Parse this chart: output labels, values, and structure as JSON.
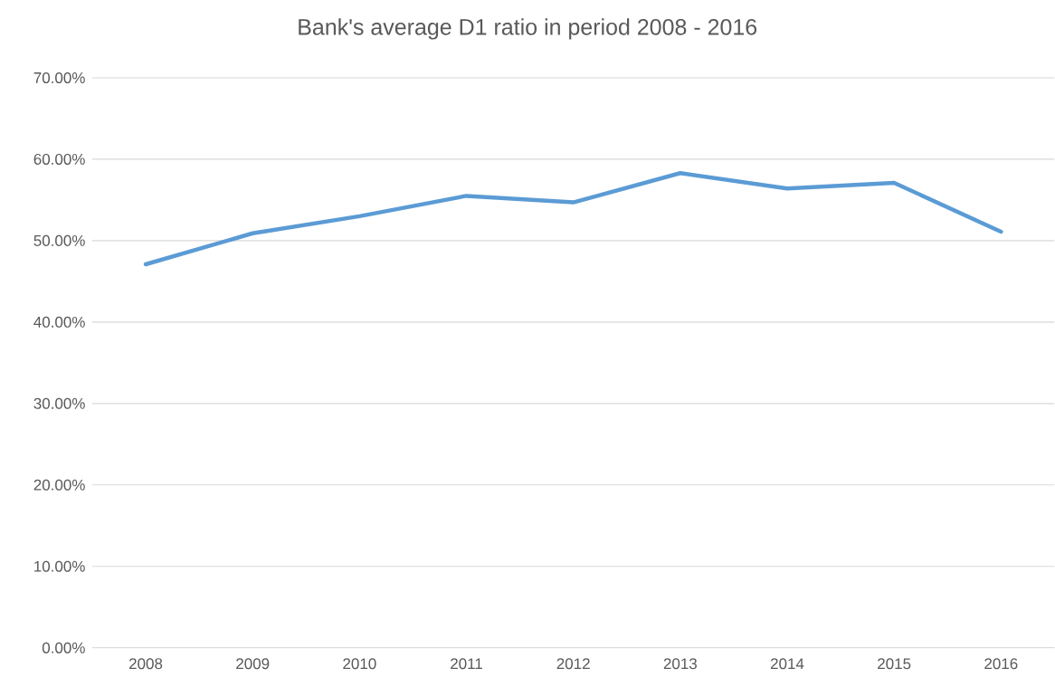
{
  "chart_data": {
    "type": "line",
    "title": "Bank's average D1 ratio in period 2008 - 2016",
    "categories": [
      "2008",
      "2009",
      "2010",
      "2011",
      "2012",
      "2013",
      "2014",
      "2015",
      "2016"
    ],
    "values": [
      47.1,
      50.9,
      53.0,
      55.5,
      54.7,
      58.3,
      56.4,
      57.1,
      51.1
    ],
    "color": "#5b9bd5",
    "marker": "none",
    "line_style": "solid",
    "grid": "y",
    "ylim": [
      0,
      70
    ],
    "yticks": [
      {
        "value": 0,
        "label": "0.00%"
      },
      {
        "value": 10,
        "label": "10.00%"
      },
      {
        "value": 20,
        "label": "20.00%"
      },
      {
        "value": 30,
        "label": "30.00%"
      },
      {
        "value": 40,
        "label": "40.00%"
      },
      {
        "value": 50,
        "label": "50.00%"
      },
      {
        "value": 60,
        "label": "60.00%"
      },
      {
        "value": 70,
        "label": "70.00%"
      }
    ]
  }
}
